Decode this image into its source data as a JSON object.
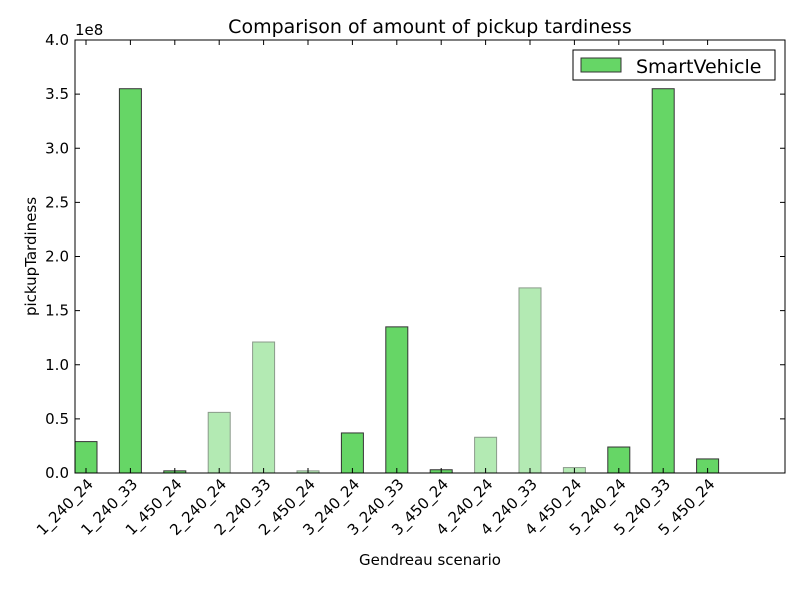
{
  "chart_data": {
    "type": "bar",
    "title": "Comparison of amount of pickup tardiness",
    "xlabel": "Gendreau scenario",
    "ylabel": "pickupTardiness",
    "scale_label": "1e8",
    "scale": 100000000,
    "ylim": [
      0,
      400000000
    ],
    "yticks": [
      0,
      50000000,
      100000000,
      150000000,
      200000000,
      250000000,
      300000000,
      350000000,
      400000000
    ],
    "ytick_labels": [
      "0.0",
      "0.5",
      "1.0",
      "1.5",
      "2.0",
      "2.5",
      "3.0",
      "3.5",
      "4.0"
    ],
    "categories": [
      "1_240_24",
      "1_240_33",
      "1_450_24",
      "2_240_24",
      "2_240_33",
      "2_450_24",
      "3_240_24",
      "3_240_33",
      "3_450_24",
      "4_240_24",
      "4_240_33",
      "4_450_24",
      "5_240_24",
      "5_240_33",
      "5_450_24"
    ],
    "series": [
      {
        "name": "SmartVehicle",
        "color": "#66d666",
        "values": [
          29000000,
          355000000,
          2000000,
          0,
          0,
          0,
          37000000,
          135000000,
          3000000,
          0,
          0,
          0,
          24000000,
          355000000,
          13000000
        ]
      },
      {
        "name": "",
        "color": "#b3eab3",
        "values": [
          0,
          0,
          0,
          56000000,
          121000000,
          2000000,
          0,
          0,
          0,
          33000000,
          171000000,
          5000000,
          0,
          0,
          0
        ]
      }
    ],
    "legend": {
      "position": "top-right",
      "entries": [
        "SmartVehicle"
      ]
    },
    "grid": false
  }
}
